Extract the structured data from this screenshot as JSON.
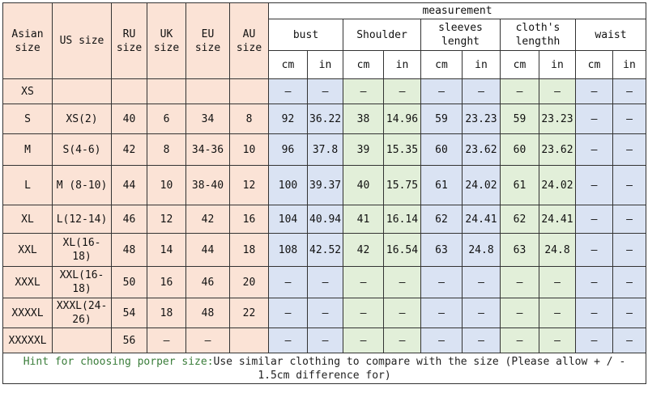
{
  "headers": {
    "asian_size": "Asian size",
    "us_size": "US size",
    "ru_size": "RU size",
    "uk_size": "UK size",
    "eu_size": "EU size",
    "au_size": "AU size",
    "measurement": "measurement",
    "bust": "bust",
    "shoulder": "Shoulder",
    "sleeves": "sleeves lenght",
    "cloth": "cloth's lengthh",
    "waist": "waist",
    "cm": "cm",
    "in": "in"
  },
  "rows": [
    {
      "asian": "XS",
      "us": "",
      "ru": "",
      "uk": "",
      "eu": "",
      "au": "",
      "bust_cm": "–",
      "bust_in": "–",
      "sh_cm": "–",
      "sh_in": "–",
      "sl_cm": "–",
      "sl_in": "–",
      "cl_cm": "–",
      "cl_in": "–",
      "w_cm": "–",
      "w_in": "–"
    },
    {
      "asian": "S",
      "us": "XS(2)",
      "ru": "40",
      "uk": "6",
      "eu": "34",
      "au": "8",
      "bust_cm": "92",
      "bust_in": "36.22",
      "sh_cm": "38",
      "sh_in": "14.96",
      "sl_cm": "59",
      "sl_in": "23.23",
      "cl_cm": "59",
      "cl_in": "23.23",
      "w_cm": "–",
      "w_in": "–"
    },
    {
      "asian": "M",
      "us": "S(4-6)",
      "ru": "42",
      "uk": "8",
      "eu": "34-36",
      "au": "10",
      "bust_cm": "96",
      "bust_in": "37.8",
      "sh_cm": "39",
      "sh_in": "15.35",
      "sl_cm": "60",
      "sl_in": "23.62",
      "cl_cm": "60",
      "cl_in": "23.62",
      "w_cm": "–",
      "w_in": "–"
    },
    {
      "asian": "L",
      "us": "M (8-10)",
      "ru": "44",
      "uk": "10",
      "eu": "38-40",
      "au": "12",
      "bust_cm": "100",
      "bust_in": "39.37",
      "sh_cm": "40",
      "sh_in": "15.75",
      "sl_cm": "61",
      "sl_in": "24.02",
      "cl_cm": "61",
      "cl_in": "24.02",
      "w_cm": "–",
      "w_in": "–"
    },
    {
      "asian": "XL",
      "us": "L(12-14)",
      "ru": "46",
      "uk": "12",
      "eu": "42",
      "au": "16",
      "bust_cm": "104",
      "bust_in": "40.94",
      "sh_cm": "41",
      "sh_in": "16.14",
      "sl_cm": "62",
      "sl_in": "24.41",
      "cl_cm": "62",
      "cl_in": "24.41",
      "w_cm": "–",
      "w_in": "–"
    },
    {
      "asian": "XXL",
      "us": "XL(16-18)",
      "ru": "48",
      "uk": "14",
      "eu": "44",
      "au": "18",
      "bust_cm": "108",
      "bust_in": "42.52",
      "sh_cm": "42",
      "sh_in": "16.54",
      "sl_cm": "63",
      "sl_in": "24.8",
      "cl_cm": "63",
      "cl_in": "24.8",
      "w_cm": "–",
      "w_in": "–"
    },
    {
      "asian": "XXXL",
      "us": "XXL(16-18)",
      "ru": "50",
      "uk": "16",
      "eu": "46",
      "au": "20",
      "bust_cm": "–",
      "bust_in": "–",
      "sh_cm": "–",
      "sh_in": "–",
      "sl_cm": "–",
      "sl_in": "–",
      "cl_cm": "–",
      "cl_in": "–",
      "w_cm": "–",
      "w_in": "–"
    },
    {
      "asian": "XXXXL",
      "us": "XXXL(24-26)",
      "ru": "54",
      "uk": "18",
      "eu": "48",
      "au": "22",
      "bust_cm": "–",
      "bust_in": "–",
      "sh_cm": "–",
      "sh_in": "–",
      "sl_cm": "–",
      "sl_in": "–",
      "cl_cm": "–",
      "cl_in": "–",
      "w_cm": "–",
      "w_in": "–"
    },
    {
      "asian": "XXXXXL",
      "us": "",
      "ru": "56",
      "uk": "–",
      "eu": "–",
      "au": "",
      "bust_cm": "–",
      "bust_in": "–",
      "sh_cm": "–",
      "sh_in": "–",
      "sl_cm": "–",
      "sl_in": "–",
      "cl_cm": "–",
      "cl_in": "–",
      "w_cm": "–",
      "w_in": "–"
    }
  ],
  "hint": {
    "lead": "Hint for choosing porper size:",
    "rest": "Use similar clothing to compare with the size (Please allow + / - 1.5cm difference for)"
  }
}
